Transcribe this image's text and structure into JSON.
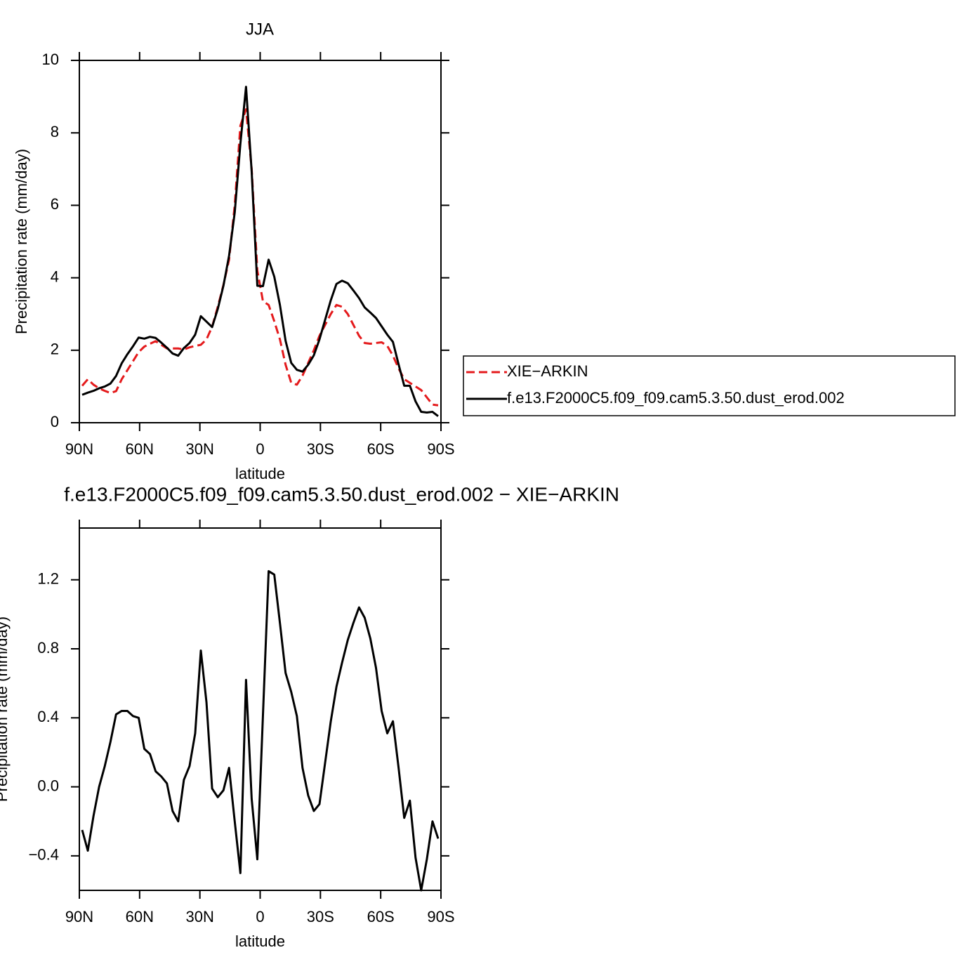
{
  "chart_data": [
    {
      "type": "line",
      "title": "JJA",
      "x_label": "latitude",
      "y_label": "Precipitation rate (mm/day)",
      "x": [
        88.59,
        85.78,
        82.97,
        80.16,
        77.34,
        74.53,
        71.72,
        68.91,
        66.09,
        63.28,
        60.47,
        57.66,
        54.84,
        52.03,
        49.22,
        46.41,
        43.59,
        40.78,
        37.97,
        35.16,
        32.34,
        29.53,
        26.72,
        23.91,
        21.09,
        18.28,
        15.47,
        12.66,
        9.84,
        7.03,
        4.22,
        1.41,
        -1.41,
        -4.22,
        -7.03,
        -9.84,
        -12.66,
        -15.47,
        -18.28,
        -21.09,
        -23.91,
        -26.72,
        -29.53,
        -32.34,
        -35.16,
        -37.97,
        -40.78,
        -43.59,
        -46.41,
        -49.22,
        -52.03,
        -54.84,
        -57.66,
        -60.47,
        -63.28,
        -66.09,
        -68.91,
        -71.72,
        -74.53,
        -77.34,
        -80.16,
        -82.97,
        -85.78,
        -88.59
      ],
      "series": [
        {
          "name": "XIE−ARKIN",
          "color": "#e41a1c",
          "line_style": "dashed",
          "values": [
            1.02,
            1.2,
            1.05,
            0.95,
            0.88,
            0.82,
            0.87,
            1.2,
            1.45,
            1.7,
            1.95,
            2.1,
            2.18,
            2.25,
            2.15,
            2.05,
            2.05,
            2.05,
            2.02,
            2.08,
            2.12,
            2.15,
            2.3,
            2.65,
            3.2,
            3.8,
            4.5,
            6.0,
            8.2,
            8.65,
            7.0,
            4.2,
            3.35,
            3.25,
            2.8,
            2.3,
            1.6,
            1.1,
            1.05,
            1.3,
            1.65,
            2.0,
            2.4,
            2.7,
            3.0,
            3.25,
            3.2,
            3.0,
            2.7,
            2.4,
            2.2,
            2.18,
            2.2,
            2.22,
            2.12,
            1.85,
            1.5,
            1.2,
            1.1,
            1.0,
            0.9,
            0.7,
            0.5,
            0.48
          ]
        },
        {
          "name": "f.e13.F2000C5.f09_f09.cam5.3.50.dust_erod.002",
          "color": "#000000",
          "line_style": "solid",
          "values": [
            0.77,
            0.83,
            0.88,
            0.95,
            1.0,
            1.08,
            1.29,
            1.64,
            1.89,
            2.11,
            2.35,
            2.32,
            2.37,
            2.34,
            2.21,
            2.07,
            1.91,
            1.85,
            2.06,
            2.2,
            2.43,
            2.94,
            2.79,
            2.64,
            3.14,
            3.78,
            4.61,
            5.8,
            7.7,
            9.27,
            6.93,
            3.78,
            3.77,
            4.5,
            4.03,
            3.25,
            2.26,
            1.65,
            1.46,
            1.41,
            1.6,
            1.86,
            2.3,
            2.84,
            3.38,
            3.83,
            3.92,
            3.85,
            3.65,
            3.44,
            3.18,
            3.04,
            2.89,
            2.66,
            2.43,
            2.23,
            1.61,
            1.02,
            1.02,
            0.59,
            0.3,
            0.28,
            0.3,
            0.18
          ]
        }
      ],
      "xlim": [
        90,
        -90
      ],
      "xticks": [
        {
          "value": 90,
          "label": "90N"
        },
        {
          "value": 60,
          "label": "60N"
        },
        {
          "value": 30,
          "label": "30N"
        },
        0,
        {
          "value": -30,
          "label": "30S"
        },
        {
          "value": -60,
          "label": "60S"
        },
        {
          "value": -90,
          "label": "90S"
        }
      ],
      "ylim": [
        0,
        10
      ],
      "yticks": [
        0,
        2,
        4,
        6,
        8,
        10
      ],
      "legend": "right"
    },
    {
      "type": "line",
      "title": "f.e13.F2000C5.f09_f09.cam5.3.50.dust_erod.002 − XIE−ARKIN",
      "x_label": "latitude",
      "y_label": "Precipitation rate (mm/day)",
      "x": [
        88.59,
        85.78,
        82.97,
        80.16,
        77.34,
        74.53,
        71.72,
        68.91,
        66.09,
        63.28,
        60.47,
        57.66,
        54.84,
        52.03,
        49.22,
        46.41,
        43.59,
        40.78,
        37.97,
        35.16,
        32.34,
        29.53,
        26.72,
        23.91,
        21.09,
        18.28,
        15.47,
        12.66,
        9.84,
        7.03,
        4.22,
        1.41,
        -1.41,
        -4.22,
        -7.03,
        -9.84,
        -12.66,
        -15.47,
        -18.28,
        -21.09,
        -23.91,
        -26.72,
        -29.53,
        -32.34,
        -35.16,
        -37.97,
        -40.78,
        -43.59,
        -46.41,
        -49.22,
        -52.03,
        -54.84,
        -57.66,
        -60.47,
        -63.28,
        -66.09,
        -68.91,
        -71.72,
        -74.53,
        -77.34,
        -80.16,
        -82.97,
        -85.78,
        -88.59
      ],
      "series": [
        {
          "color": "#000000",
          "line_style": "solid",
          "values": [
            -0.25,
            -0.37,
            -0.17,
            0.0,
            0.12,
            0.26,
            0.42,
            0.44,
            0.44,
            0.41,
            0.4,
            0.22,
            0.19,
            0.09,
            0.06,
            0.02,
            -0.14,
            -0.2,
            0.04,
            0.12,
            0.31,
            0.79,
            0.49,
            -0.01,
            -0.06,
            -0.02,
            0.11,
            -0.2,
            -0.5,
            0.62,
            -0.07,
            -0.42,
            0.42,
            1.25,
            1.23,
            0.95,
            0.66,
            0.55,
            0.41,
            0.11,
            -0.05,
            -0.14,
            -0.1,
            0.14,
            0.38,
            0.58,
            0.72,
            0.85,
            0.95,
            1.04,
            0.98,
            0.86,
            0.69,
            0.44,
            0.31,
            0.38,
            0.11,
            -0.18,
            -0.08,
            -0.41,
            -0.6,
            -0.42,
            -0.2,
            -0.3
          ]
        }
      ],
      "xlim": [
        90,
        -90
      ],
      "xticks": [
        {
          "value": 90,
          "label": "90N"
        },
        {
          "value": 60,
          "label": "60N"
        },
        {
          "value": 30,
          "label": "30N"
        },
        0,
        {
          "value": -30,
          "label": "30S"
        },
        {
          "value": -60,
          "label": "60S"
        },
        {
          "value": -90,
          "label": "90S"
        }
      ],
      "ylim": [
        -0.6,
        1.5
      ],
      "yticks": [
        {
          "value": -0.4,
          "label": "−0.4"
        },
        {
          "value": 0,
          "label": "0.0"
        },
        0.4,
        0.8,
        1.2
      ]
    }
  ]
}
